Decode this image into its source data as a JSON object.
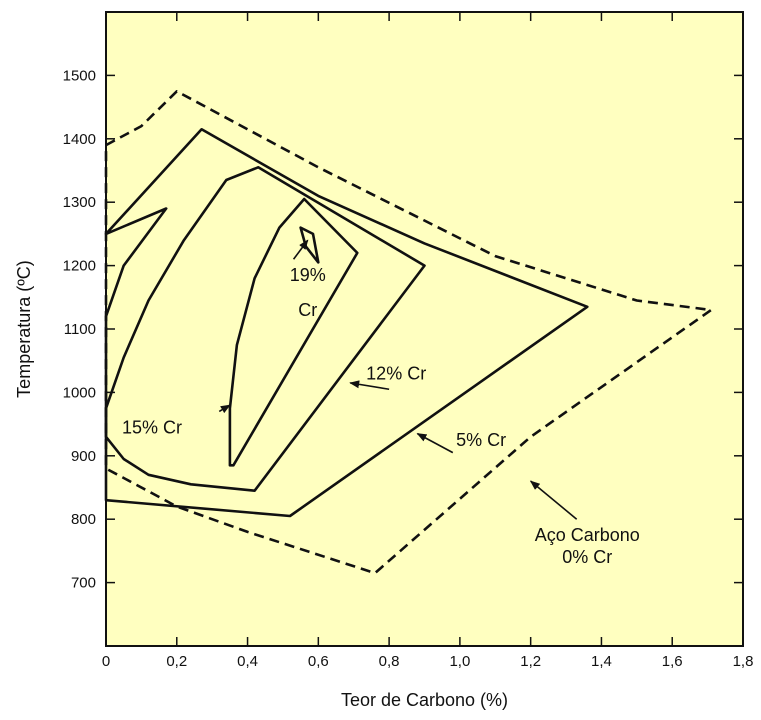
{
  "chart_data": {
    "type": "line",
    "title": "",
    "xlabel": "Teor de Carbono (%)",
    "ylabel": "Temperatura (ºC)",
    "xlim": [
      0,
      1.8
    ],
    "ylim": [
      600,
      1600
    ],
    "x_ticks": [
      "0",
      "0,2",
      "0,4",
      "0,6",
      "0,8",
      "1,0",
      "1,2",
      "1,4",
      "1,6",
      "1,8"
    ],
    "x_tick_values": [
      0,
      0.2,
      0.4,
      0.6,
      0.8,
      1.0,
      1.2,
      1.4,
      1.6,
      1.8
    ],
    "y_ticks": [
      "700",
      "800",
      "900",
      "1000",
      "1100",
      "1200",
      "1300",
      "1400",
      "1500"
    ],
    "y_tick_values": [
      700,
      800,
      900,
      1000,
      1100,
      1200,
      1300,
      1400,
      1500
    ],
    "background_color": "#FFFFC0",
    "line_color": "#111111",
    "grid": false,
    "series": [
      {
        "name": "Aço Carbono 0% Cr",
        "dashed": true,
        "x": [
          0,
          0.1,
          0.2,
          0.6,
          1.1,
          1.5,
          1.71,
          1.2,
          0.76,
          0.4,
          0.2,
          0
        ],
        "y": [
          1390,
          1420,
          1475,
          1355,
          1215,
          1145,
          1130,
          930,
          715,
          780,
          820,
          880
        ]
      },
      {
        "name": "5% Cr",
        "dashed": false,
        "x": [
          0,
          0.27,
          0.6,
          0.9,
          1.36,
          0.52,
          0,
          0,
          0.05,
          0.17
        ],
        "y": [
          1250,
          1415,
          1310,
          1235,
          1135,
          805,
          830,
          1120,
          1200,
          1290
        ]
      },
      {
        "name": "12% Cr",
        "dashed": false,
        "x": [
          0,
          0.05,
          0.12,
          0.22,
          0.34,
          0.43,
          0.9,
          0.42,
          0.24,
          0.12,
          0.05,
          0
        ],
        "y": [
          975,
          1055,
          1145,
          1240,
          1335,
          1355,
          1200,
          845,
          855,
          870,
          895,
          930
        ]
      },
      {
        "name": "15% Cr",
        "dashed": false,
        "x": [
          0.35,
          0.35,
          0.37,
          0.42,
          0.49,
          0.56,
          0.71,
          0.36
        ],
        "y": [
          885,
          975,
          1075,
          1180,
          1260,
          1305,
          1220,
          885
        ]
      },
      {
        "name": "19% Cr",
        "dashed": false,
        "x": [
          0.55,
          0.585,
          0.6,
          0.565,
          0.55
        ],
        "y": [
          1260,
          1250,
          1205,
          1230,
          1260
        ]
      }
    ],
    "labels": [
      {
        "lines": [
          "19%",
          "Cr"
        ],
        "x": 0.57,
        "y": [
          1185,
          1130
        ]
      },
      {
        "lines": [
          "15% Cr"
        ],
        "x": 0.13,
        "y": [
          945
        ]
      },
      {
        "lines": [
          "12% Cr"
        ],
        "x": 0.82,
        "y": [
          1030
        ]
      },
      {
        "lines": [
          "5% Cr"
        ],
        "x": 1.06,
        "y": [
          925
        ]
      },
      {
        "lines": [
          "Aço Carbono",
          "0% Cr"
        ],
        "x": 1.36,
        "y": [
          775,
          740
        ]
      }
    ],
    "arrows": [
      {
        "from": [
          0.53,
          1210
        ],
        "to": [
          0.57,
          1240
        ]
      },
      {
        "from": [
          0.32,
          970
        ],
        "to": [
          0.35,
          980
        ]
      },
      {
        "from": [
          0.8,
          1005
        ],
        "to": [
          0.69,
          1015
        ]
      },
      {
        "from": [
          0.98,
          905
        ],
        "to": [
          0.88,
          935
        ]
      },
      {
        "from": [
          1.33,
          800
        ],
        "to": [
          1.2,
          860
        ]
      }
    ]
  }
}
